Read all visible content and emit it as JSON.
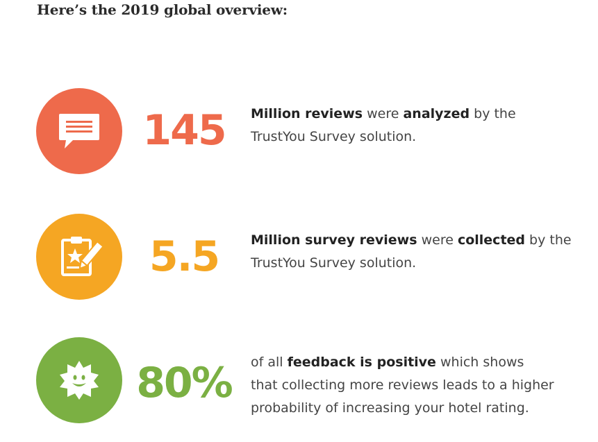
{
  "heading": "Here’s the 2019 global overview:",
  "colors": {
    "reviews": "#ee6a4b",
    "survey": "#f5a623",
    "feedback": "#7bb043"
  },
  "stats": [
    {
      "icon": "speech-bubble-icon",
      "number": "145",
      "line1": {
        "b1": "Million reviews",
        "t1": " were ",
        "b2": "analyzed",
        "t2": " by the"
      },
      "line2": "TrustYou Survey solution."
    },
    {
      "icon": "clipboard-star-pencil-icon",
      "number": "5.5",
      "line1": {
        "b1": "Million survey reviews",
        "t1": " were ",
        "b2": "collected",
        "t2": " by the"
      },
      "line2": "TrustYou Survey solution."
    },
    {
      "icon": "smiling-sun-icon",
      "number": "80%",
      "line1": {
        "t1": "of all ",
        "b1": "feedback is positive",
        "t2": " which shows"
      },
      "line2": "that collecting more reviews leads to a higher",
      "line3": "probability of increasing your hotel rating."
    }
  ]
}
